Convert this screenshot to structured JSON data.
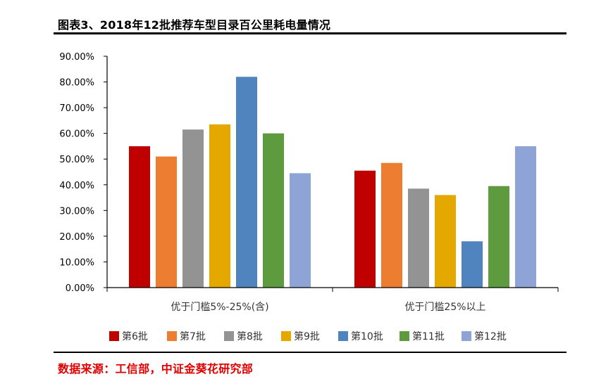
{
  "header": {
    "title": "图表3、2018年12批推荐车型目录百公里耗电量情况"
  },
  "footer": {
    "source": "数据来源：工信部，中证金葵花研究部"
  },
  "chart_data": {
    "type": "bar",
    "title": "",
    "xlabel": "",
    "ylabel": "",
    "ylim": [
      0,
      0.9
    ],
    "yticks": [
      "0.00%",
      "10.00%",
      "20.00%",
      "30.00%",
      "40.00%",
      "50.00%",
      "60.00%",
      "70.00%",
      "80.00%",
      "90.00%"
    ],
    "grid": false,
    "legend_position": "bottom",
    "categories": [
      "优于门槛5%-25%(含)",
      "优于门槛25%以上"
    ],
    "series": [
      {
        "name": "第6批",
        "color": "#c00000",
        "values": [
          0.55,
          0.455
        ]
      },
      {
        "name": "第7批",
        "color": "#ed7d31",
        "values": [
          0.51,
          0.485
        ]
      },
      {
        "name": "第8批",
        "color": "#939393",
        "values": [
          0.615,
          0.385
        ]
      },
      {
        "name": "第9批",
        "color": "#e4a800",
        "values": [
          0.635,
          0.36
        ]
      },
      {
        "name": "第10批",
        "color": "#4f84be",
        "values": [
          0.82,
          0.18
        ]
      },
      {
        "name": "第11批",
        "color": "#5e9a3e",
        "values": [
          0.6,
          0.395
        ]
      },
      {
        "name": "第12批",
        "color": "#8fa4d6",
        "values": [
          0.445,
          0.55
        ]
      }
    ]
  }
}
